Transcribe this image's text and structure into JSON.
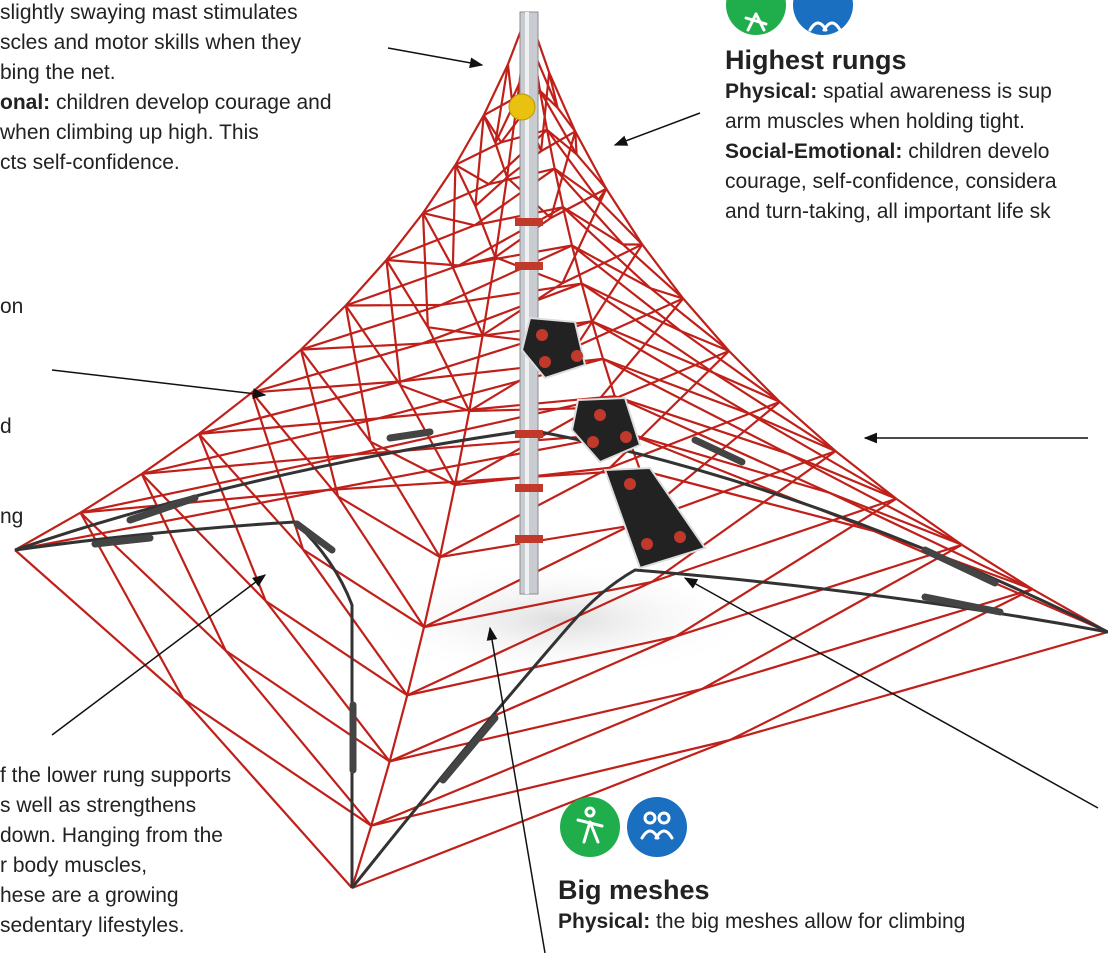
{
  "blocks": {
    "top_left": {
      "lines": [
        {
          "text": "slightly swaying mast stimulates"
        },
        {
          "text": "scles and motor skills when they"
        },
        {
          "text": "bing the net."
        },
        {
          "bold": "onal:",
          "text": " children develop courage and"
        },
        {
          "text": " when climbing up high. This"
        },
        {
          "text": "cts self-confidence."
        }
      ]
    },
    "left_fragments": {
      "lines": [
        {
          "text": "on"
        },
        {
          "text": "d"
        },
        {
          "text": "ng"
        }
      ]
    },
    "highest_rungs": {
      "title": "Highest rungs",
      "lines": [
        {
          "bold": "Physical:",
          "text": " spatial awareness is sup"
        },
        {
          "text": "arm muscles when holding tight."
        },
        {
          "bold": "Social-Emotional:",
          "text": " children develo"
        },
        {
          "text": "courage, self-confidence, considera"
        },
        {
          "text": "and turn-taking, all important life sk"
        }
      ]
    },
    "bottom_left": {
      "lines": [
        {
          "text": "f the lower rung supports"
        },
        {
          "text": "s well as strengthens"
        },
        {
          "text": " down. Hanging from the"
        },
        {
          "text": "r body muscles,"
        },
        {
          "text": "hese are a growing"
        },
        {
          "text": "sedentary lifestyles."
        }
      ]
    },
    "big_meshes": {
      "title": "Big meshes",
      "lines": [
        {
          "bold": "Physical:",
          "text": " the big meshes allow for climbing"
        }
      ]
    }
  }
}
